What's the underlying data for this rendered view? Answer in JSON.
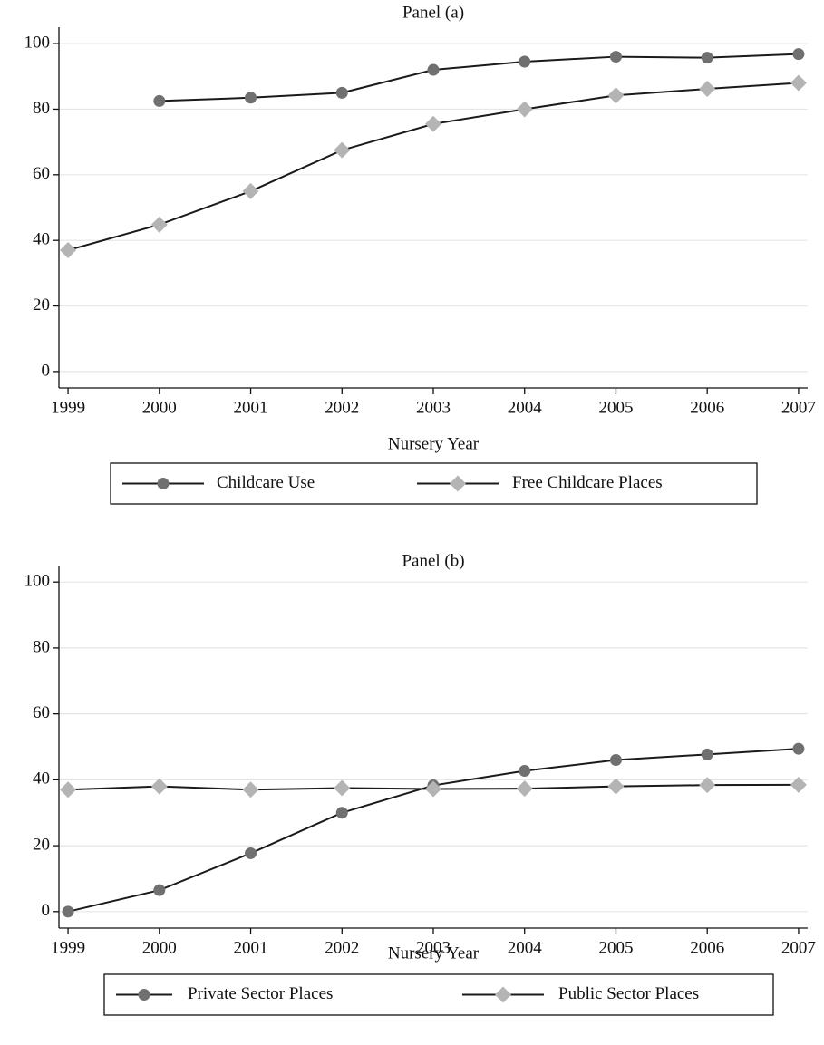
{
  "chart_data": [
    {
      "type": "line",
      "title": "Panel (a)",
      "x_label": "Nursery Year",
      "x": [
        1999,
        2000,
        2001,
        2002,
        2003,
        2004,
        2005,
        2006,
        2007
      ],
      "series": [
        {
          "name": "Childcare Use",
          "color": "#707070",
          "line_color": "#1a1a1a",
          "marker": "circle",
          "values": [
            null,
            82.5,
            83.5,
            85,
            92,
            94.5,
            96,
            95.7,
            96.8
          ]
        },
        {
          "name": "Free Childcare Places",
          "color": "#b4b4b4",
          "line_color": "#1a1a1a",
          "marker": "diamond",
          "values": [
            37,
            44.8,
            55,
            67.5,
            75.5,
            80,
            84.2,
            86.2,
            88
          ]
        }
      ],
      "xlim": [
        1998.9,
        2007.1
      ],
      "xticks": [
        1999,
        2000,
        2001,
        2002,
        2003,
        2004,
        2005,
        2006,
        2007
      ],
      "ylim": [
        -5,
        105
      ],
      "yticks": [
        0,
        20,
        40,
        60,
        80,
        100
      ],
      "grid": true,
      "legend": "bottom"
    },
    {
      "type": "line",
      "title": "Panel (b)",
      "x_label": "Nursery Year",
      "x": [
        1999,
        2000,
        2001,
        2002,
        2003,
        2004,
        2005,
        2006,
        2007
      ],
      "series": [
        {
          "name": "Private Sector Places",
          "color": "#707070",
          "line_color": "#1a1a1a",
          "marker": "circle",
          "values": [
            0,
            6.5,
            17.7,
            30,
            38.3,
            42.7,
            46,
            47.7,
            49.4
          ]
        },
        {
          "name": "Public Sector Places",
          "color": "#b4b4b4",
          "line_color": "#1a1a1a",
          "marker": "diamond",
          "values": [
            37,
            38,
            37,
            37.5,
            37.2,
            37.3,
            38,
            38.4,
            38.5
          ]
        }
      ],
      "xlim": [
        1998.9,
        2007.1
      ],
      "xticks": [
        1999,
        2000,
        2001,
        2002,
        2003,
        2004,
        2005,
        2006,
        2007
      ],
      "ylim": [
        -5,
        105
      ],
      "yticks": [
        0,
        20,
        40,
        60,
        80,
        100
      ],
      "grid": true,
      "legend": "bottom"
    }
  ]
}
